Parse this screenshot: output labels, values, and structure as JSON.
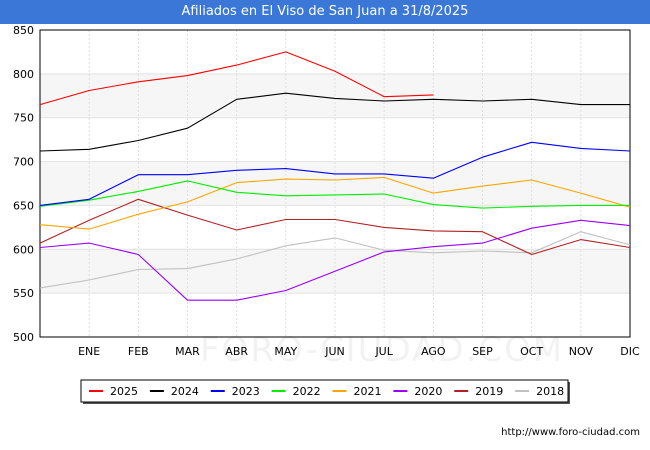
{
  "header": {
    "title": "Afiliados en El Viso de San Juan a 31/8/2025"
  },
  "footer": {
    "url": "http://www.foro-ciudad.com"
  },
  "watermark": "FORO-CIUDAD.COM",
  "chart_data": {
    "type": "line",
    "title": "Afiliados en El Viso de San Juan a 31/8/2025",
    "xlabel": "",
    "ylabel": "",
    "categories": [
      "",
      "ENE",
      "FEB",
      "MAR",
      "ABR",
      "MAY",
      "JUN",
      "JUL",
      "AGO",
      "SEP",
      "OCT",
      "NOV",
      "DIC"
    ],
    "ylim": [
      500,
      850
    ],
    "yticks": [
      500,
      550,
      600,
      650,
      700,
      750,
      800,
      850
    ],
    "grid": true,
    "legend_position": "bottom",
    "series": [
      {
        "name": "2025",
        "color": "#ff0000",
        "values": [
          765,
          781,
          791,
          798,
          810,
          825,
          803,
          774,
          776,
          null,
          null,
          null,
          null
        ]
      },
      {
        "name": "2024",
        "color": "#000000",
        "values": [
          712,
          714,
          724,
          738,
          771,
          778,
          772,
          769,
          771,
          769,
          771,
          765,
          765
        ]
      },
      {
        "name": "2023",
        "color": "#0000ff",
        "values": [
          650,
          657,
          685,
          685,
          690,
          692,
          686,
          686,
          681,
          705,
          722,
          715,
          712
        ]
      },
      {
        "name": "2022",
        "color": "#00ee00",
        "values": [
          649,
          656,
          666,
          678,
          665,
          661,
          662,
          663,
          651,
          647,
          649,
          650,
          650
        ]
      },
      {
        "name": "2021",
        "color": "#ffa500",
        "values": [
          628,
          623,
          640,
          654,
          676,
          680,
          679,
          682,
          664,
          672,
          679,
          664,
          648
        ]
      },
      {
        "name": "2020",
        "color": "#9900ff",
        "values": [
          602,
          607,
          594,
          542,
          542,
          553,
          575,
          597,
          603,
          607,
          624,
          633,
          627
        ]
      },
      {
        "name": "2019",
        "color": "#b22222",
        "values": [
          607,
          633,
          657,
          639,
          622,
          634,
          634,
          625,
          621,
          620,
          594,
          611,
          602
        ]
      },
      {
        "name": "2018",
        "color": "#c0c0c0",
        "values": [
          556,
          565,
          577,
          578,
          589,
          604,
          613,
          599,
          596,
          598,
          596,
          620,
          605
        ]
      }
    ]
  }
}
